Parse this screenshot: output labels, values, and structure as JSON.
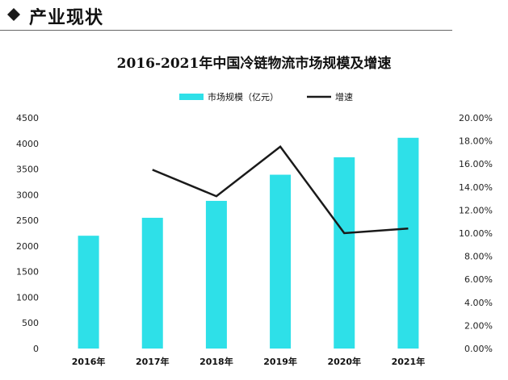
{
  "header": {
    "title": "产业现状",
    "icon": "diamond-icon"
  },
  "colors": {
    "bar": "#2ee0e8",
    "line": "#1a1a1a"
  },
  "chart_data": {
    "type": "bar",
    "title": "2016-2021年中国冷链物流市场规模及增速",
    "categories": [
      "2016年",
      "2017年",
      "2018年",
      "2019年",
      "2020年",
      "2021年"
    ],
    "series": [
      {
        "name": "市场规模（亿元）",
        "kind": "bar",
        "axis": "left",
        "values": [
          2200,
          2550,
          2880,
          3390,
          3730,
          4110
        ]
      },
      {
        "name": "增速",
        "kind": "line",
        "axis": "right",
        "values": [
          null,
          15.5,
          13.2,
          17.5,
          10.0,
          10.4
        ]
      }
    ],
    "left_axis": {
      "ylim": [
        0,
        4500
      ],
      "ticks": [
        "0",
        "500",
        "1000",
        "1500",
        "2000",
        "2500",
        "3000",
        "3500",
        "4000",
        "4500"
      ]
    },
    "right_axis": {
      "ylim": [
        0,
        20
      ],
      "unit": "%",
      "ticks": [
        "0.00%",
        "2.00%",
        "4.00%",
        "6.00%",
        "8.00%",
        "10.00%",
        "12.00%",
        "14.00%",
        "16.00%",
        "18.00%",
        "20.00%"
      ]
    },
    "legend_position": "top-center",
    "grid": false
  }
}
